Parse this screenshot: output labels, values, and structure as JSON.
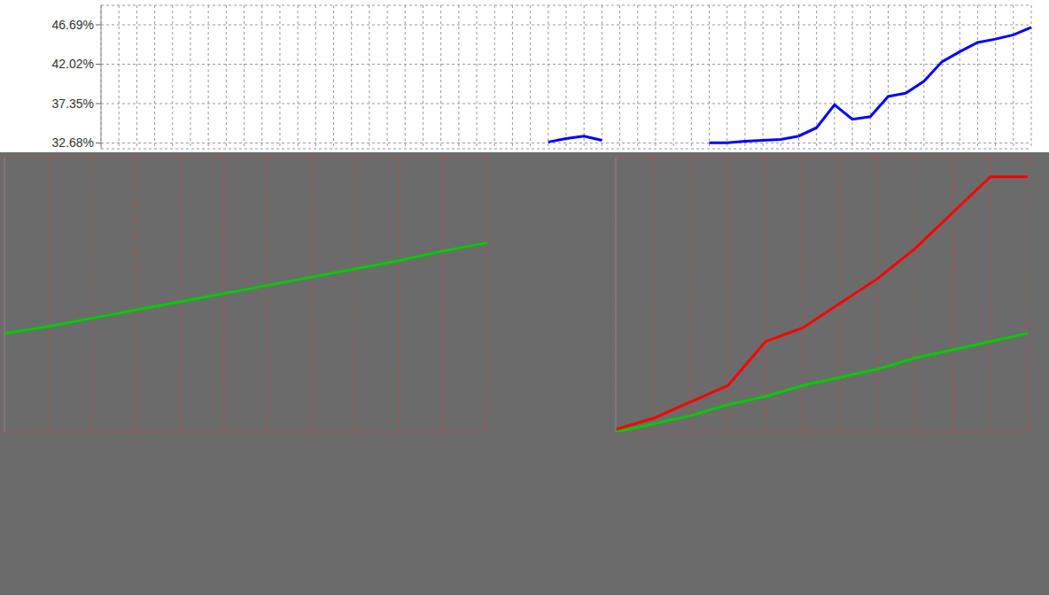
{
  "chart_data": [
    {
      "type": "line",
      "categories": [
        null,
        null,
        null,
        null,
        null,
        null,
        null,
        null,
        null,
        null,
        null,
        null,
        null,
        null,
        null,
        null,
        null,
        null,
        null,
        null,
        null,
        null,
        null,
        null,
        null,
        null,
        null,
        null,
        null,
        null,
        null,
        null,
        null,
        null,
        null,
        null,
        null,
        null,
        null,
        null,
        null,
        null,
        null,
        null,
        null,
        null,
        null,
        null,
        null,
        null,
        null,
        null,
        null
      ],
      "series": [
        {
          "color": "#0000ff",
          "values": [
            null,
            null,
            null,
            null,
            null,
            null,
            null,
            null,
            null,
            null,
            null,
            null,
            null,
            null,
            null,
            null,
            null,
            null,
            null,
            null,
            null,
            null,
            null,
            null,
            null,
            32.8,
            33.2,
            33.5,
            33.0,
            null,
            null,
            null,
            null,
            null,
            32.7,
            32.7,
            32.9,
            33.0,
            33.1,
            33.5,
            34.5,
            37.2,
            35.5,
            35.8,
            38.2,
            38.6,
            40.0,
            42.3,
            43.5,
            44.6,
            45.0,
            45.5,
            46.4
          ]
        }
      ],
      "ylim": [
        32,
        49
      ],
      "yticks": [
        {
          "value": 32.68,
          "label": "32.68%"
        },
        {
          "value": 37.35,
          "label": "37.35%"
        },
        {
          "value": 42.02,
          "label": "42.02%"
        },
        {
          "value": 46.69,
          "label": "46.69%"
        }
      ],
      "grid": true,
      "tick_labels": "y"
    },
    {
      "type": "line",
      "categories": [
        null,
        null,
        null,
        null,
        null,
        null,
        null,
        null,
        null,
        null,
        null,
        null
      ],
      "series": [
        {
          "color": "#00cc00",
          "values": [
            36,
            38.5,
            41.5,
            44.5,
            47.5,
            50.5,
            53.5,
            56.5,
            59.5,
            62.5,
            66,
            69
          ]
        }
      ],
      "ylim": [
        0,
        100
      ],
      "yticks": [
        0,
        20,
        40,
        60,
        80,
        100
      ],
      "grid": true,
      "tick_labels": false
    },
    {
      "type": "line",
      "categories": [
        null,
        null,
        null,
        null,
        null,
        null,
        null,
        null,
        null,
        null,
        null,
        null
      ],
      "series": [
        {
          "color": "#ff0000",
          "values": [
            1,
            5,
            11,
            17,
            33,
            38,
            47,
            56,
            67,
            80,
            93,
            93
          ]
        },
        {
          "color": "#00cc00",
          "values": [
            0,
            3,
            6,
            10,
            13,
            17,
            20,
            23,
            27,
            30,
            33,
            36
          ]
        }
      ],
      "ylim": [
        0,
        100
      ],
      "yticks": [
        0,
        20,
        40,
        60,
        80,
        100
      ],
      "grid": true,
      "tick_labels": false
    }
  ]
}
